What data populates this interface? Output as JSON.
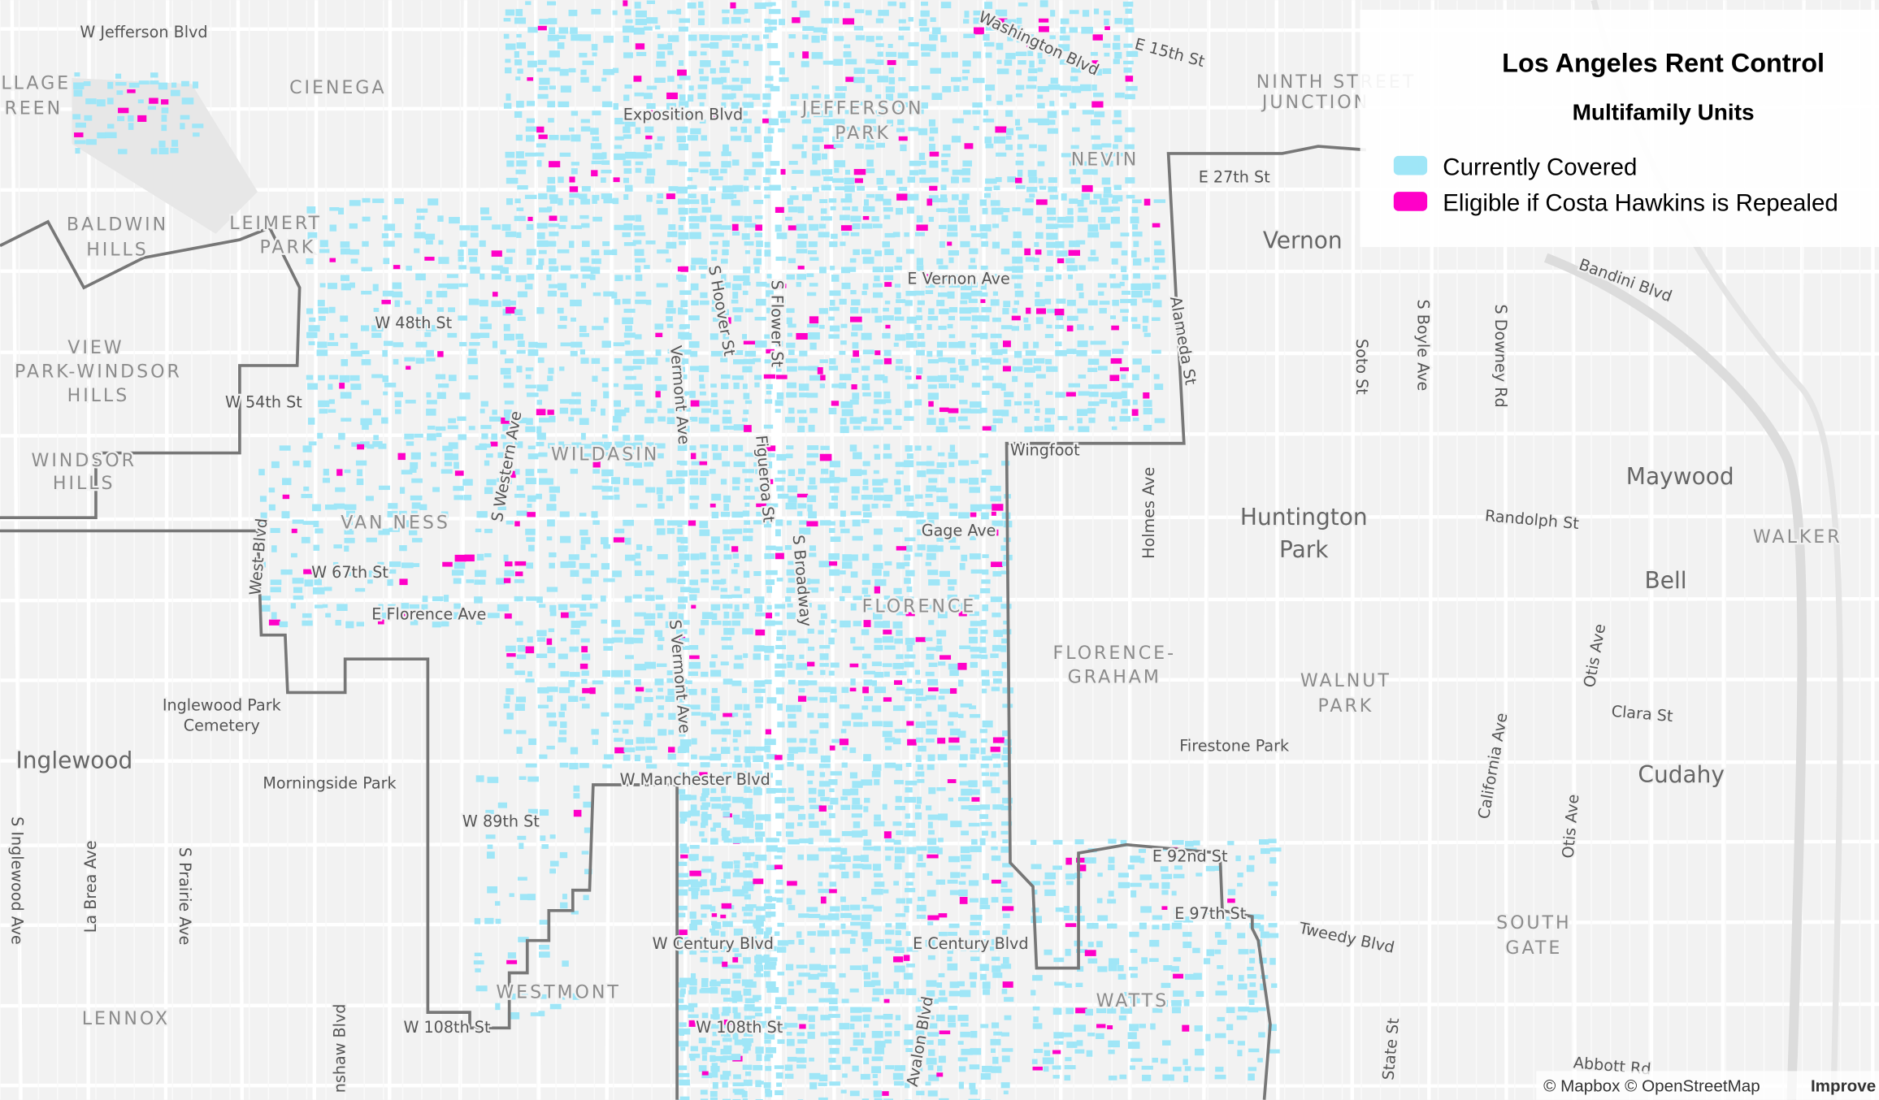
{
  "legend": {
    "title": "Los Angeles Rent Control",
    "subtitle": "Multifamily Units",
    "items": [
      "Currently Covered",
      "Eligible if Costa Hawkins is Repealed"
    ]
  },
  "map_labels": [
    "W Jefferson Blvd",
    "Washington Blvd",
    "E 15th St",
    "NINTH STREET",
    "JUNCTION",
    "LLAGE",
    "REEN",
    "CIENEGA",
    "Exposition Blvd",
    "JEFFERSON",
    "PARK",
    "NEVIN",
    "E 27th St",
    "Vernon",
    "Bandini Blvd",
    "BALDWIN",
    "HILLS",
    "LEIMERT",
    "PARK",
    "E Vernon Ave",
    "S Hoover St",
    "S Flower St",
    "Alameda St",
    "S Boyle Ave",
    "S Downey Rd",
    "Soto St",
    "W 48th St",
    "VIEW",
    "PARK-WINDSOR",
    "HILLS",
    "W 54th St",
    "Vermont Ave",
    "Wingfoot",
    "WINDSOR",
    "HILLS",
    "S Western Ave",
    "WILDASIN",
    "Figueroa St",
    "Holmes Ave",
    "Huntington",
    "Park",
    "Maywood",
    "Randolph St",
    "WALKER",
    "VAN NESS",
    "Gage Ave",
    "West Blvd",
    "W 67th St",
    "S Broadway",
    "Bell",
    "FLORENCE",
    "E Florence Ave",
    "FLORENCE-",
    "GRAHAM",
    "WALNUT",
    "PARK",
    "S Vermont Ave",
    "Otis Ave",
    "Clara St",
    "Inglewood Park",
    "Cemetery",
    "Inglewood",
    "Firestone Park",
    "California Ave",
    "Cudahy",
    "Morningside Park",
    "W Manchester Blvd",
    "W 89th St",
    "S Inglewood Ave",
    "La Brea Ave",
    "S Prairie Ave",
    "Otis Ave",
    "E 92nd St",
    "E 97th St",
    "Tweedy Blvd",
    "SOUTH",
    "GATE",
    "W Century Blvd",
    "E Century Blvd",
    "WESTMONT",
    "WATTS",
    "LENNOX",
    "W 108th St",
    "W 108th St",
    "Avalon Blvd",
    "nshaw Blvd",
    "State St",
    "Abbott Rd"
  ],
  "attribution": {
    "credits": "© Mapbox © OpenStreetMap",
    "improve": "Improve"
  }
}
